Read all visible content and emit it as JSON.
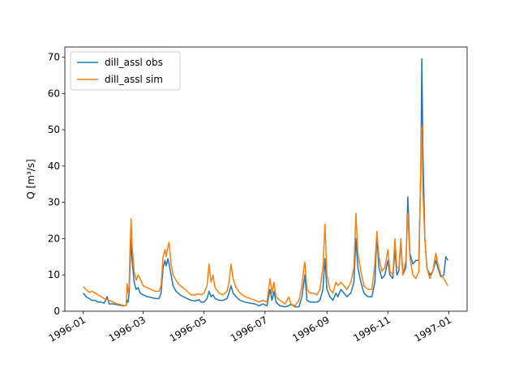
{
  "chart_data": {
    "type": "line",
    "ylabel": "Q [m³/s]",
    "legend": "upper left",
    "x": [
      0,
      3,
      6,
      9,
      12,
      15,
      18,
      21,
      24,
      26,
      30,
      34,
      38,
      41,
      43,
      44,
      45,
      46,
      47,
      48,
      49,
      51,
      53,
      55,
      57,
      60,
      64,
      68,
      72,
      76,
      78,
      80,
      82,
      83,
      85,
      86,
      88,
      90,
      93,
      97,
      100,
      104,
      108,
      112,
      116,
      118,
      121,
      124,
      126,
      128,
      130,
      132,
      136,
      140,
      144,
      146,
      148,
      150,
      153,
      157,
      162,
      167,
      172,
      176,
      180,
      184,
      187,
      189,
      191,
      193,
      197,
      202,
      206,
      208,
      212,
      216,
      219,
      221,
      222,
      224,
      227,
      230,
      234,
      237,
      240,
      242,
      244,
      247,
      250,
      253,
      255,
      258,
      261,
      264,
      268,
      271,
      273,
      275,
      278,
      281,
      285,
      289,
      292,
      294,
      296,
      299,
      302,
      305,
      307,
      310,
      312,
      314,
      316,
      318,
      320,
      323,
      325,
      327,
      330,
      333,
      336,
      338,
      339,
      340,
      342,
      344,
      347,
      350,
      353,
      355,
      358,
      361,
      363,
      365
    ],
    "series": [
      {
        "name": "dill_assl obs",
        "color": "#1f77b4",
        "values": [
          5,
          4,
          3.5,
          3,
          3,
          2.5,
          2.5,
          2.2,
          4,
          2,
          2,
          1.8,
          1.6,
          1.5,
          1.5,
          3,
          2.5,
          5,
          13,
          20,
          14,
          8,
          6,
          6.5,
          5,
          4.5,
          4,
          3.8,
          3.5,
          3.5,
          5,
          12,
          14,
          12.5,
          14.5,
          13,
          10,
          7,
          5.5,
          4.5,
          4,
          3.5,
          3,
          2.8,
          3.2,
          2.5,
          2.5,
          3.5,
          5.5,
          4,
          4.5,
          3.5,
          3,
          3,
          3.5,
          5,
          7,
          5,
          4,
          3,
          2.5,
          2.2,
          2,
          1.5,
          2,
          1.5,
          6,
          3,
          5.5,
          2.5,
          1.5,
          1.2,
          1.5,
          2,
          1.2,
          1.2,
          4,
          8,
          10,
          3,
          2.5,
          2.5,
          2.5,
          3,
          6,
          14.5,
          6,
          4,
          3,
          5,
          4,
          6,
          5,
          4,
          5,
          8,
          20,
          12,
          8,
          5,
          4,
          4,
          8,
          21,
          12,
          9,
          10,
          14,
          10,
          9,
          17,
          10,
          11,
          19,
          10,
          12,
          31.5,
          16,
          13,
          14,
          14,
          40,
          69.5,
          45,
          20,
          12,
          10,
          11,
          14,
          12,
          9.5,
          10,
          15,
          14
        ]
      },
      {
        "name": "dill_assl sim",
        "color": "#ff7f0e",
        "values": [
          6.8,
          6,
          5.2,
          5.5,
          5,
          4.5,
          4,
          3.5,
          3.2,
          3,
          2.5,
          2,
          1.8,
          1.6,
          1.5,
          7.5,
          5,
          7,
          18,
          25.5,
          18,
          11,
          8.5,
          10,
          9,
          7,
          6.5,
          6,
          5.5,
          5.5,
          7,
          15,
          17,
          15,
          18,
          19,
          13,
          10,
          8.5,
          7,
          6.5,
          5.5,
          4.5,
          4.5,
          4.8,
          4.5,
          5,
          7,
          13,
          8,
          10,
          6.5,
          5,
          4.5,
          5.5,
          8,
          13,
          9,
          6.5,
          5,
          4,
          3.5,
          3,
          2.5,
          3,
          2.5,
          9,
          5,
          8,
          4,
          3,
          2,
          4,
          2,
          1.5,
          3,
          7,
          12,
          13.5,
          6,
          5,
          5,
          4.5,
          6,
          12,
          24,
          10,
          6,
          5,
          8,
          7,
          8,
          7,
          6,
          8,
          12,
          27,
          16,
          11,
          7,
          6,
          6,
          13,
          22,
          15,
          11,
          12,
          17,
          11,
          10,
          20,
          12,
          12,
          20,
          10,
          14,
          27,
          15,
          10,
          9,
          11,
          40,
          51,
          33,
          20,
          12,
          9,
          11,
          16,
          13,
          10,
          9,
          8,
          7
        ]
      }
    ],
    "xlim": [
      -18.3,
      384.3
    ],
    "xticks": [
      {
        "value": 0,
        "label": "1996-01"
      },
      {
        "value": 60,
        "label": "1996-03"
      },
      {
        "value": 121,
        "label": "1996-05"
      },
      {
        "value": 182,
        "label": "1996-07"
      },
      {
        "value": 244,
        "label": "1996-09"
      },
      {
        "value": 305,
        "label": "1996-11"
      },
      {
        "value": 366,
        "label": "1997-01"
      }
    ],
    "ylim": [
      0,
      72.8
    ],
    "yticks": [
      0,
      10,
      20,
      30,
      40,
      50,
      60,
      70
    ]
  }
}
